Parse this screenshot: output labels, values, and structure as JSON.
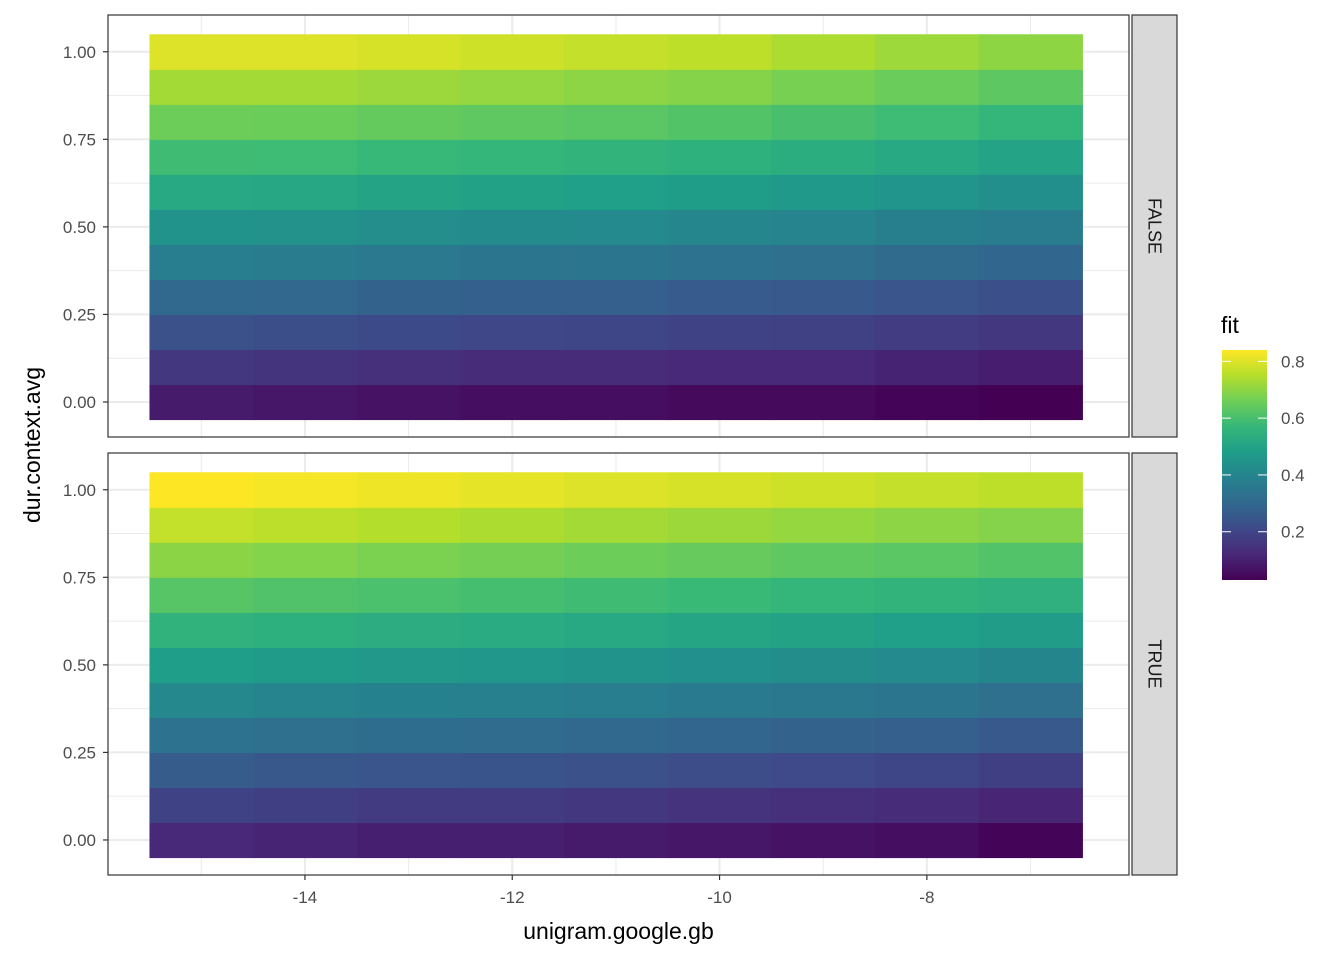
{
  "chart_data": {
    "type": "heatmap",
    "xlabel": "unigram.google.gb",
    "ylabel": "dur.context.avg",
    "x_ticks": [
      -14,
      -12,
      -10,
      -8
    ],
    "y_ticks": [
      0.0,
      0.25,
      0.5,
      0.75,
      1.0
    ],
    "y_tick_labels": [
      "0.00",
      "0.25",
      "0.50",
      "0.75",
      "1.00"
    ],
    "xlim": [
      -15.9,
      -6.05
    ],
    "ylim": [
      -0.1,
      1.105
    ],
    "x": [
      -15,
      -14,
      -13,
      -12,
      -11,
      -10,
      -9,
      -8,
      -7
    ],
    "y": [
      0.0,
      0.1,
      0.2,
      0.3,
      0.4,
      0.5,
      0.6,
      0.7,
      0.8,
      0.9,
      1.0
    ],
    "x_range": [
      -15.5,
      -6.5
    ],
    "facets": [
      {
        "label": "FALSE",
        "fit_low": [
          0.09,
          0.08,
          0.07,
          0.06,
          0.06,
          0.05,
          0.05,
          0.04,
          0.03
        ],
        "fit_high": [
          0.8,
          0.8,
          0.79,
          0.78,
          0.77,
          0.76,
          0.74,
          0.72,
          0.7
        ]
      },
      {
        "label": "TRUE",
        "fit_low": [
          0.12,
          0.11,
          0.1,
          0.1,
          0.09,
          0.08,
          0.07,
          0.06,
          0.04
        ],
        "fit_high": [
          0.84,
          0.83,
          0.82,
          0.81,
          0.8,
          0.79,
          0.78,
          0.77,
          0.76
        ]
      }
    ],
    "legend": {
      "title": "fit",
      "ticks": [
        0.2,
        0.4,
        0.6,
        0.8
      ],
      "tick_labels": [
        "0.2",
        "0.4",
        "0.6",
        "0.8"
      ],
      "range": [
        0.03,
        0.84
      ],
      "placement": "right"
    },
    "grid": true,
    "colormap": "viridis"
  }
}
